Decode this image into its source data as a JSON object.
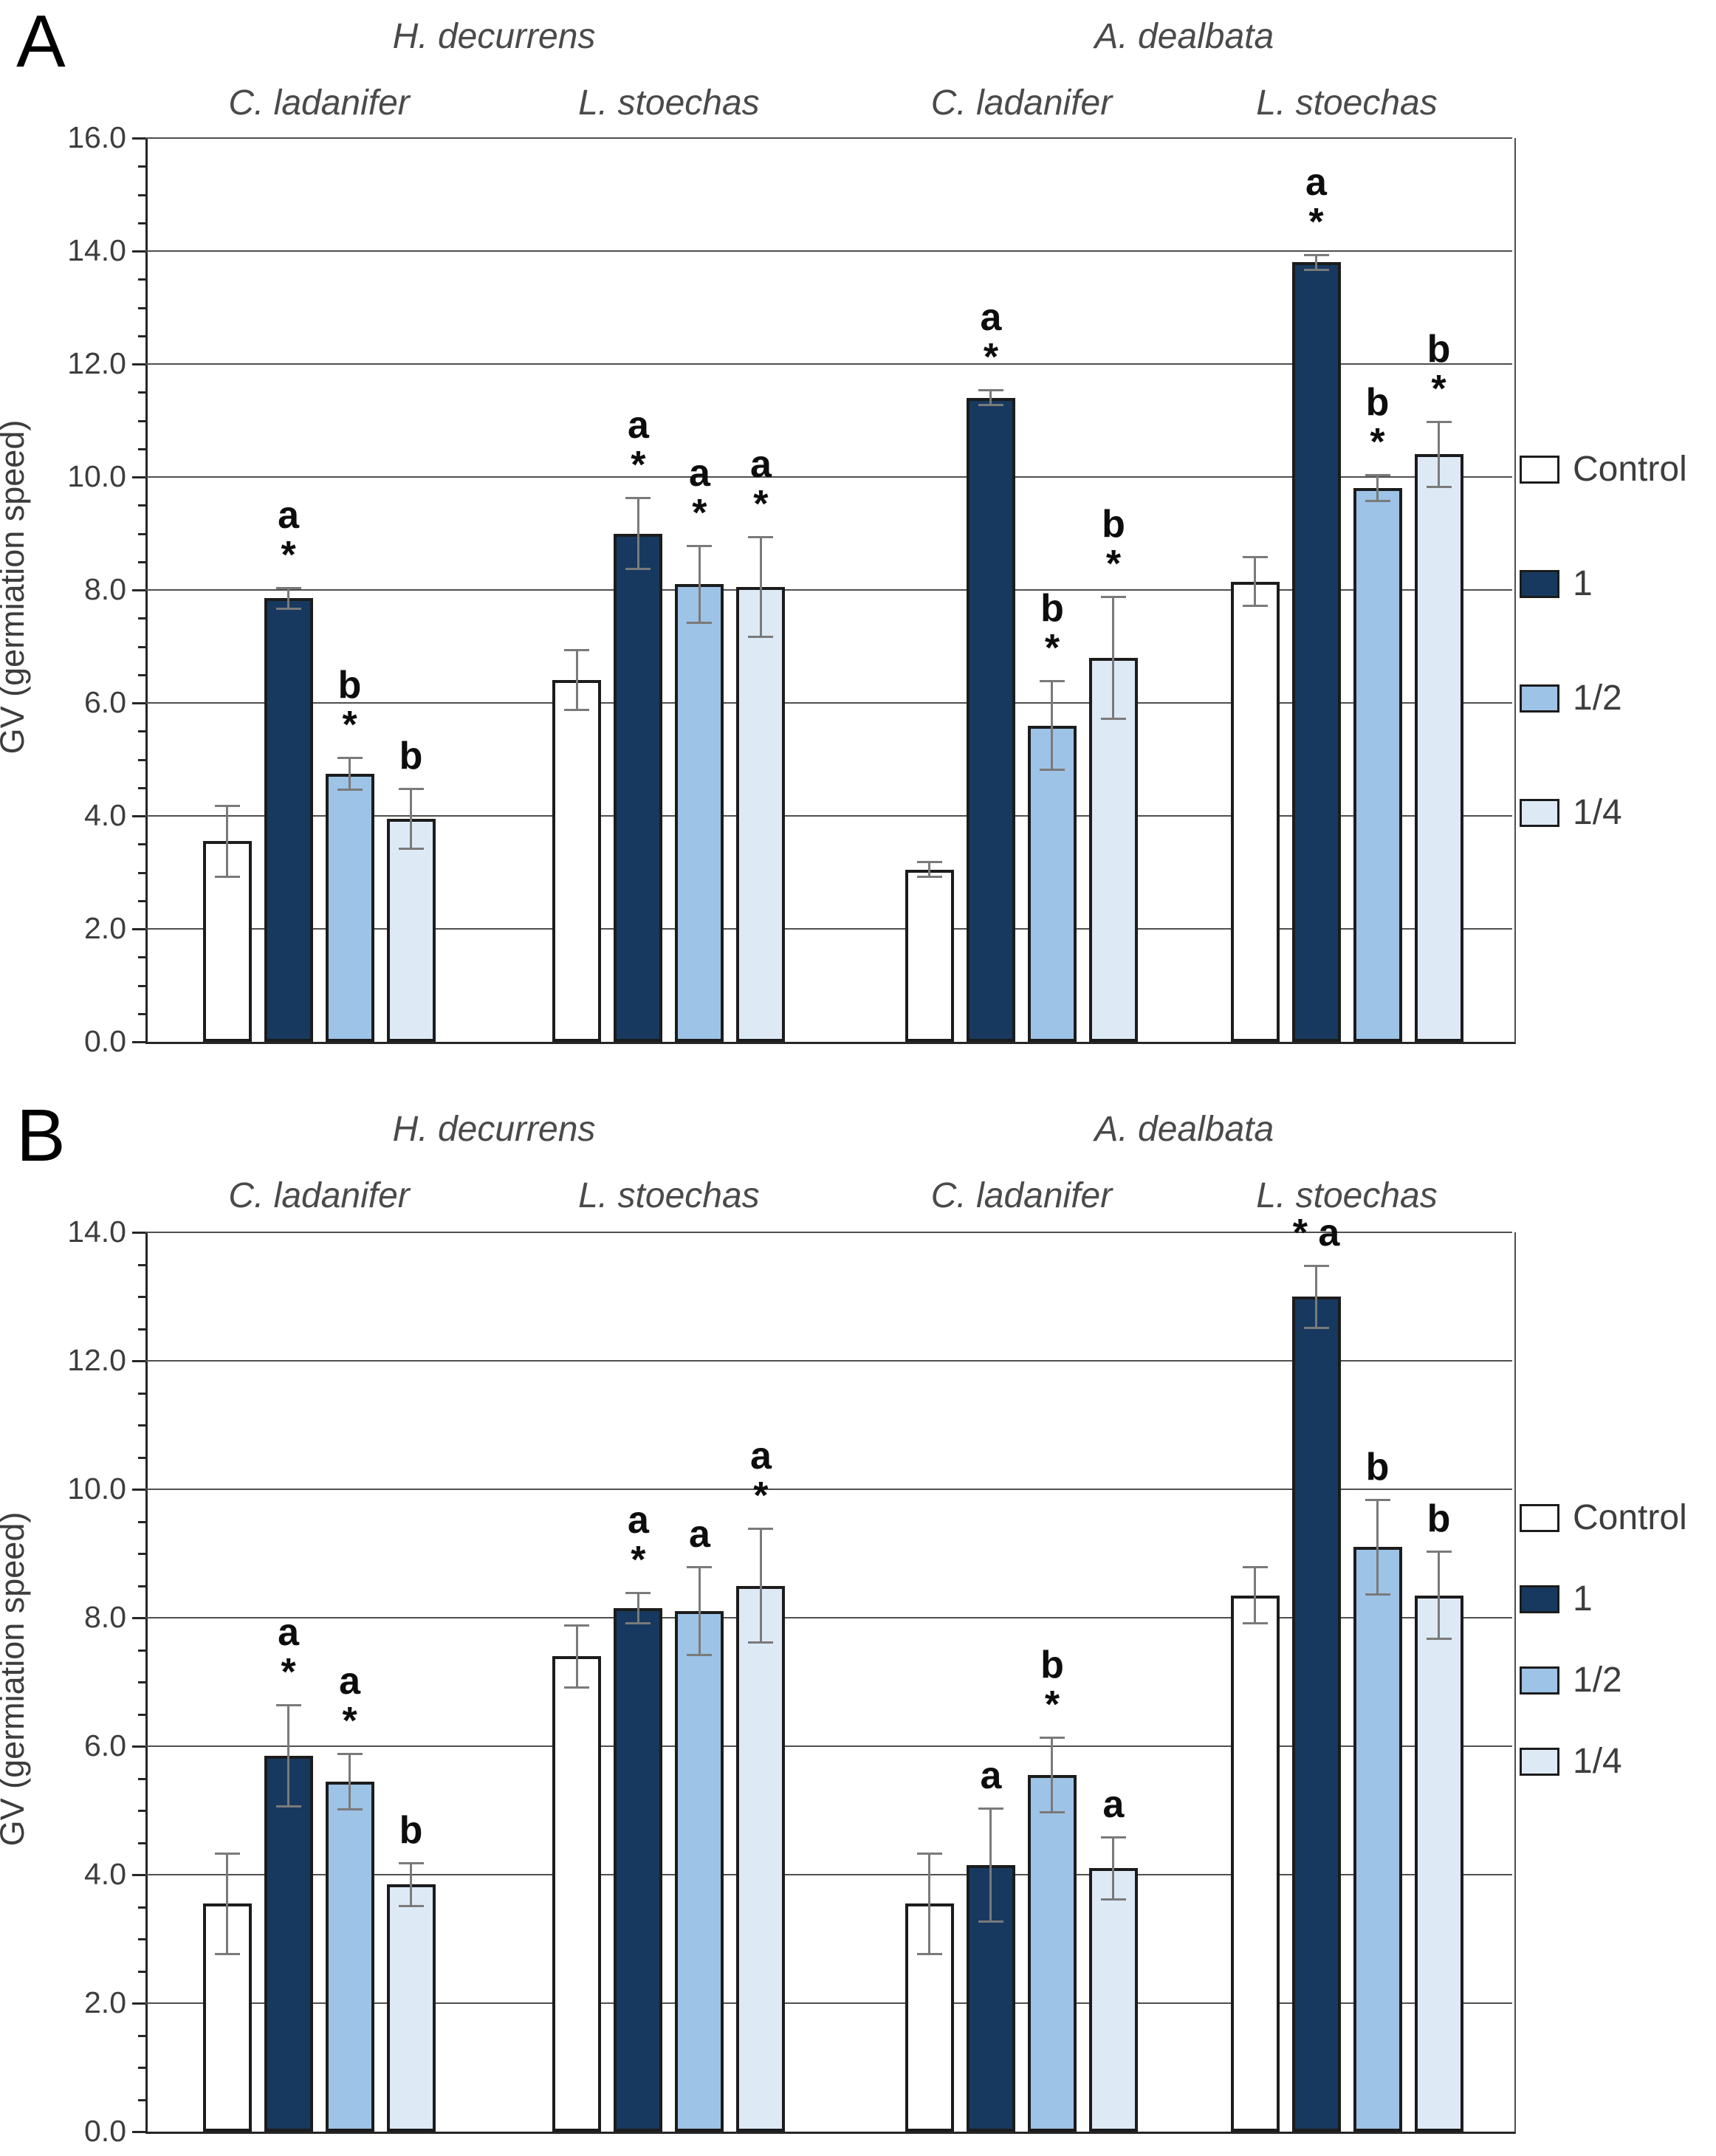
{
  "colors": {
    "background": "#FFFFFF",
    "bar_border": "#1C1C1C",
    "error_bar": "#7A7A7A",
    "gridline": "#4F4F4F",
    "axis": "#262626",
    "tick_text": "#3D3D3D",
    "header_text": "#4A4A4A",
    "annotation_text": "#0D0D0D",
    "series": {
      "Control": "#FFFFFF",
      "1": "#17395F",
      "1/2": "#9DC3E6",
      "1/4": "#DDEAF6"
    }
  },
  "legend": {
    "items": [
      {
        "label": "Control",
        "color": "#FFFFFF"
      },
      {
        "label": "1",
        "color": "#17395F"
      },
      {
        "label": "1/2",
        "color": "#9DC3E6"
      },
      {
        "label": "1/4",
        "color": "#DDEAF6"
      }
    ]
  },
  "chart_data": [
    {
      "type": "bar",
      "panel_label": "A",
      "species_headers": [
        "H. decurrens",
        "A. dealbata"
      ],
      "categories": [
        "C. ladanifer",
        "L. stoechas",
        "C. ladanifer",
        "L. stoechas"
      ],
      "ylabel": "GV (germiation speed)",
      "ylim": [
        0,
        16
      ],
      "ytick_step": 2,
      "ytick_labels": [
        "0.0",
        "2.0",
        "4.0",
        "6.0",
        "8.0",
        "10.0",
        "12.0",
        "14.0",
        "16.0"
      ],
      "grid": true,
      "legend_position": "right",
      "series": [
        {
          "name": "Control",
          "values": [
            3.55,
            6.4,
            3.05,
            8.15
          ],
          "errors": [
            0.65,
            0.55,
            0.15,
            0.45
          ],
          "annotations": [
            "",
            "",
            "",
            ""
          ]
        },
        {
          "name": "1",
          "values": [
            7.85,
            9.0,
            11.4,
            13.8
          ],
          "errors": [
            0.2,
            0.65,
            0.15,
            0.15
          ],
          "annotations": [
            "a\n*",
            "a\n*",
            "a\n*",
            "a\n*"
          ]
        },
        {
          "name": "1/2",
          "values": [
            4.75,
            8.1,
            5.6,
            9.8
          ],
          "errors": [
            0.3,
            0.7,
            0.8,
            0.25
          ],
          "annotations": [
            "b\n*",
            "a\n*",
            "b\n*",
            "b\n*"
          ]
        },
        {
          "name": "1/4",
          "values": [
            3.95,
            8.05,
            6.8,
            10.4
          ],
          "errors": [
            0.55,
            0.9,
            1.1,
            0.6
          ],
          "annotations": [
            "b",
            "a\n*",
            "b\n*",
            "b\n*"
          ]
        }
      ]
    },
    {
      "type": "bar",
      "panel_label": "B",
      "species_headers": [
        "H. decurrens",
        "A. dealbata"
      ],
      "categories": [
        "C. ladanifer",
        "L. stoechas",
        "C. ladanifer",
        "L. stoechas"
      ],
      "ylabel": "GV (germiation speed)",
      "ylim": [
        0,
        14
      ],
      "ytick_step": 2,
      "ytick_labels": [
        "0.0",
        "2.0",
        "4.0",
        "6.0",
        "8.0",
        "10.0",
        "12.0",
        "14.0"
      ],
      "grid": true,
      "legend_position": "right",
      "series": [
        {
          "name": "Control",
          "values": [
            3.55,
            7.4,
            3.55,
            8.35
          ],
          "errors": [
            0.8,
            0.5,
            0.8,
            0.45
          ],
          "annotations": [
            "",
            "",
            "",
            ""
          ]
        },
        {
          "name": "1",
          "values": [
            5.85,
            8.15,
            4.15,
            13.0
          ],
          "errors": [
            0.8,
            0.25,
            0.9,
            0.5
          ],
          "annotations": [
            "a\n*",
            "a\n*",
            "a",
            "* a"
          ]
        },
        {
          "name": "1/2",
          "values": [
            5.45,
            8.1,
            5.55,
            9.1
          ],
          "errors": [
            0.45,
            0.7,
            0.6,
            0.75
          ],
          "annotations": [
            "a\n*",
            "a",
            "b\n*",
            "b"
          ]
        },
        {
          "name": "1/4",
          "values": [
            3.85,
            8.5,
            4.1,
            8.35
          ],
          "errors": [
            0.35,
            0.9,
            0.5,
            0.7
          ],
          "annotations": [
            "b",
            "a\n*",
            "a",
            "b"
          ]
        }
      ]
    }
  ]
}
